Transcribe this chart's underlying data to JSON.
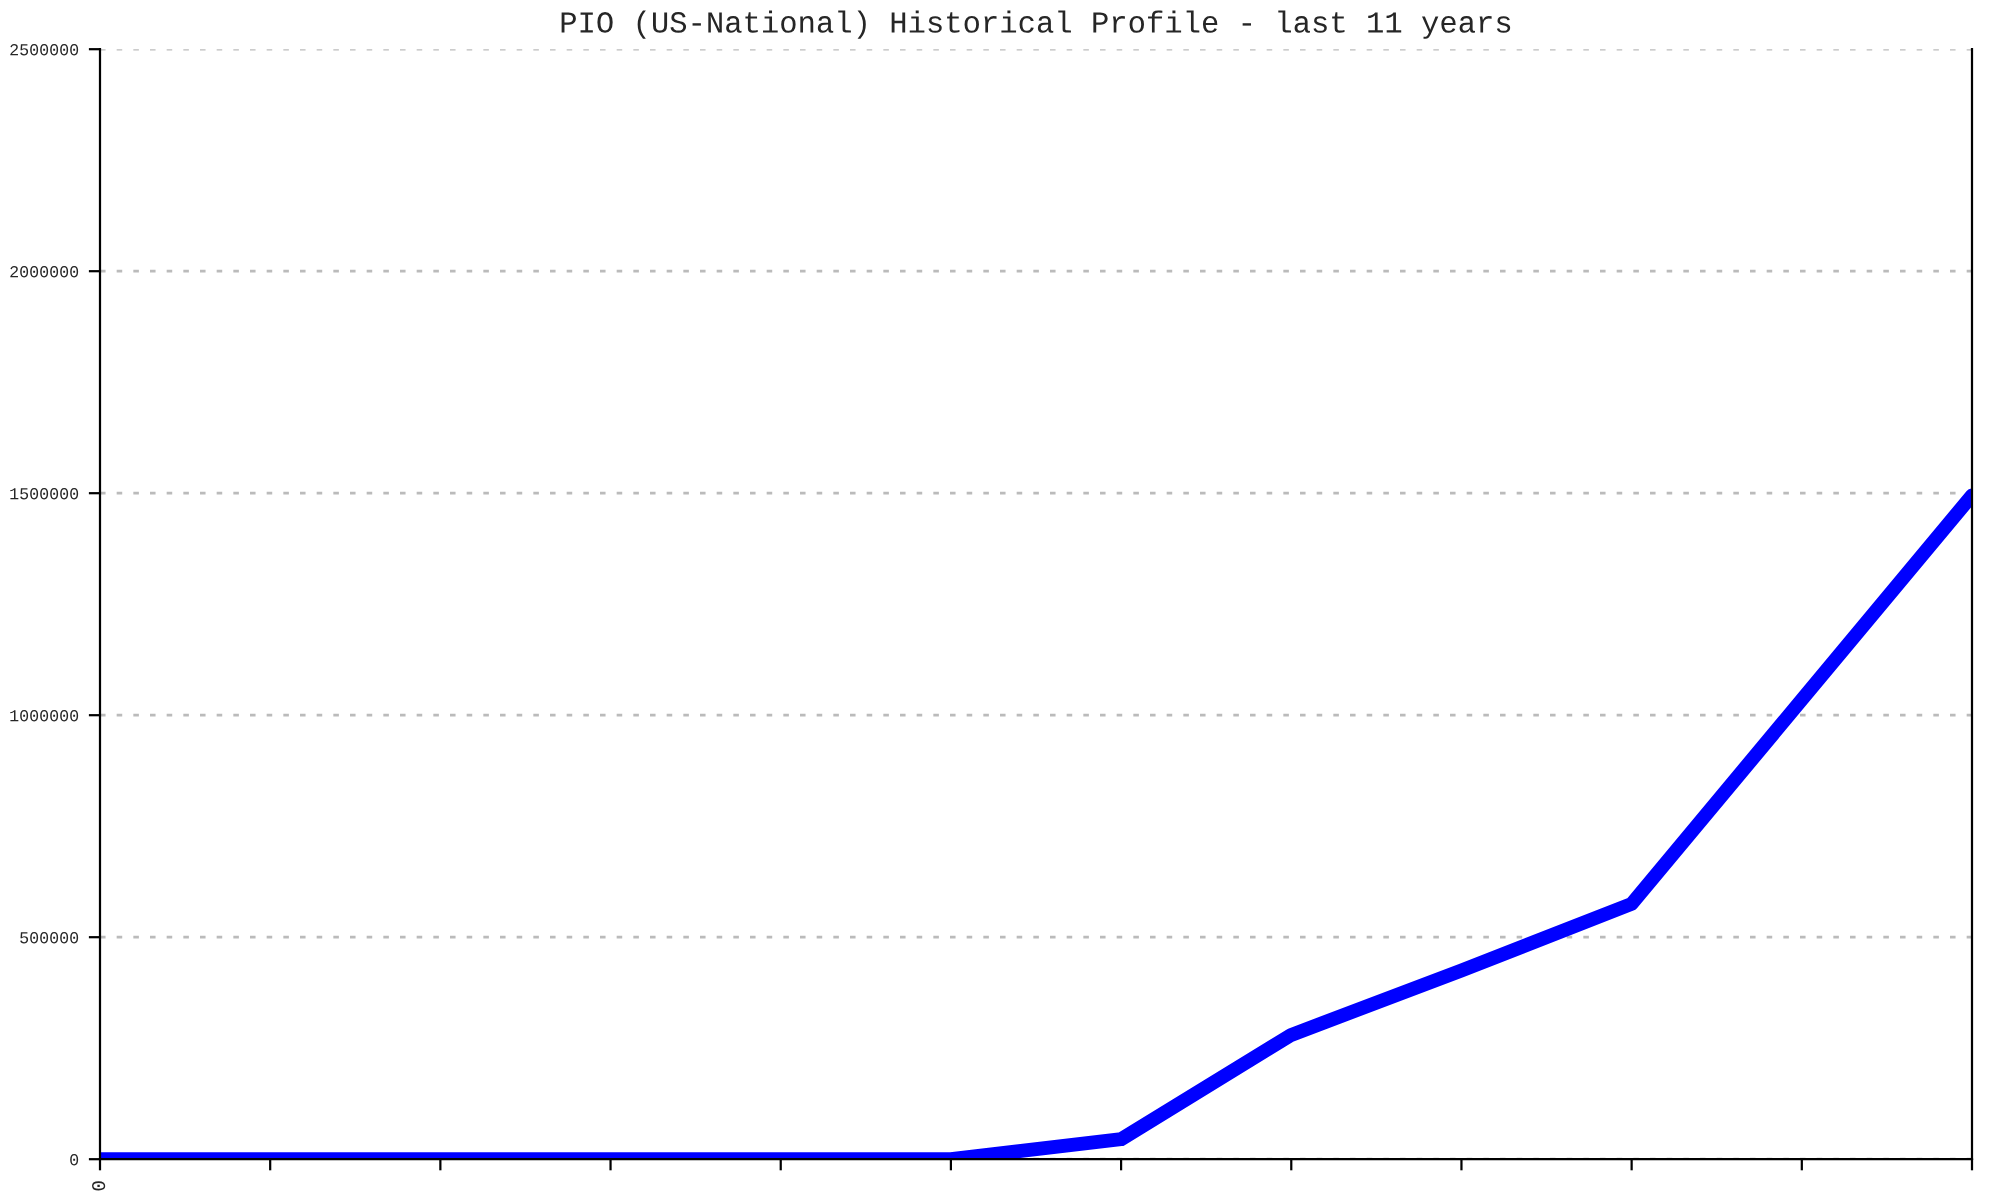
{
  "chart_data": {
    "type": "line",
    "title": "PIO (US-National) Historical Profile - last 11 years",
    "categories": [
      "0",
      null,
      null,
      null,
      null,
      null,
      null,
      null,
      null,
      null,
      null,
      null
    ],
    "series": [
      {
        "color": "#0000ff",
        "values": [
          0,
          0,
          0,
          0,
          0,
          0,
          45000,
          280000,
          425000,
          575000,
          1035000,
          1495000
        ]
      }
    ],
    "ylim": [
      0,
      2500000
    ],
    "yticks": [
      0,
      500000,
      1000000,
      1500000,
      2000000,
      2500000
    ],
    "grid": "y",
    "marker": "none",
    "line_style": "solid"
  }
}
